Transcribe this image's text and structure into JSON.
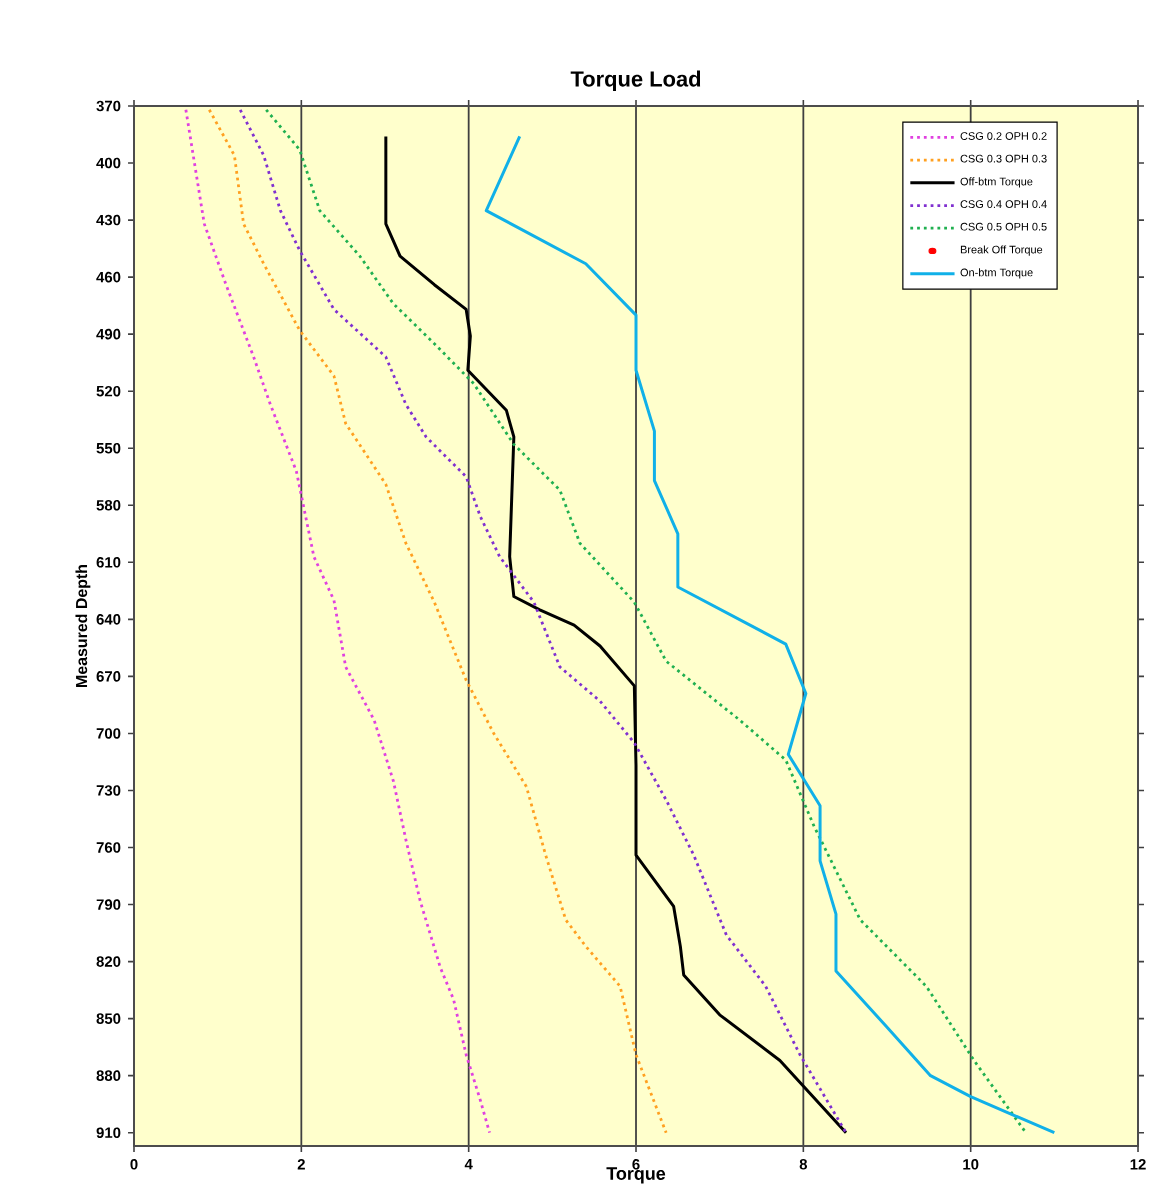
{
  "chart_data": {
    "type": "line",
    "title": "Torque Load",
    "xlabel": "Torque",
    "ylabel": "Measured Depth",
    "xlim": [
      0,
      12
    ],
    "xticks": [
      0,
      2,
      4,
      6,
      8,
      10,
      12
    ],
    "ylim": [
      917,
      370
    ],
    "yticks": [
      370,
      400,
      430,
      460,
      490,
      520,
      550,
      580,
      610,
      640,
      670,
      700,
      730,
      760,
      790,
      820,
      850,
      880,
      910
    ],
    "grid": "x",
    "legend": "top right",
    "series": [
      {
        "name": "CSG 0.2 OPH 0.2",
        "color": "#e040e0",
        "line_style": "dotted",
        "x": [
          0.62,
          0.84,
          1.1,
          1.43,
          1.63,
          1.94,
          2.15,
          2.39,
          2.53,
          2.87,
          3.1,
          3.25,
          3.42,
          3.66,
          3.82,
          3.97,
          4.14,
          4.25
        ],
        "values": [
          372,
          432,
          464,
          502,
          527,
          562,
          607,
          630,
          665,
          693,
          725,
          756,
          788,
          823,
          840,
          869,
          893,
          910
        ]
      },
      {
        "name": "CSG 0.3 OPH 0.3",
        "color": "#ffa020",
        "line_style": "dotted",
        "x": [
          0.9,
          1.2,
          1.31,
          1.55,
          1.98,
          2.39,
          2.53,
          3.01,
          3.25,
          3.59,
          3.97,
          4.3,
          4.69,
          4.92,
          5.16,
          5.4,
          5.81,
          6.0,
          6.36
        ],
        "values": [
          372,
          396,
          432,
          453,
          488,
          512,
          537,
          569,
          600,
          631,
          672,
          700,
          728,
          764,
          798,
          812,
          833,
          869,
          910
        ]
      },
      {
        "name": "Off-btm Torque",
        "color": "#000000",
        "line_style": "solid",
        "x": [
          3.01,
          3.01,
          3.18,
          3.59,
          3.97,
          4.02,
          3.99,
          4.45,
          4.54,
          4.49,
          4.54,
          4.85,
          5.26,
          5.57,
          5.98,
          6.0,
          6.0,
          6.45,
          6.53,
          6.57,
          7.0,
          7.72,
          8.51
        ],
        "values": [
          386,
          432,
          449,
          464,
          477,
          491,
          509,
          530,
          544,
          607,
          628,
          635,
          643,
          654,
          675,
          717,
          764,
          791,
          812,
          827,
          848,
          872,
          910
        ]
      },
      {
        "name": "CSG 0.4 OPH 0.4",
        "color": "#8030d0",
        "line_style": "dotted",
        "x": [
          1.27,
          1.55,
          1.75,
          1.98,
          2.39,
          3.01,
          3.25,
          3.49,
          3.97,
          4.14,
          4.37,
          4.78,
          5.09,
          5.57,
          5.98,
          6.36,
          6.69,
          7.08,
          7.55,
          7.96,
          8.51
        ],
        "values": [
          372,
          396,
          425,
          446,
          477,
          502,
          527,
          544,
          565,
          586,
          607,
          631,
          665,
          683,
          705,
          735,
          764,
          806,
          833,
          869,
          910
        ]
      },
      {
        "name": "CSG 0.5 OPH 0.5",
        "color": "#20b050",
        "line_style": "dotted",
        "x": [
          1.58,
          1.98,
          2.22,
          2.7,
          3.1,
          3.59,
          4.06,
          4.54,
          5.09,
          5.33,
          5.98,
          6.36,
          7.24,
          7.79,
          8.13,
          8.68,
          9.47,
          10.04,
          10.66
        ],
        "values": [
          372,
          393,
          425,
          449,
          474,
          495,
          516,
          548,
          572,
          600,
          631,
          662,
          693,
          714,
          749,
          798,
          833,
          872,
          910
        ]
      },
      {
        "name": "Break Off Torque",
        "type": "scatter",
        "color": "#ff0000",
        "marker": "circle"
      },
      {
        "name": "On-btm Torque",
        "color": "#10b0e8",
        "line_style": "solid",
        "x": [
          4.61,
          4.21,
          5.4,
          6.0,
          6.0,
          6.22,
          6.22,
          6.5,
          6.5,
          7.79,
          8.03,
          7.82,
          8.2,
          8.2,
          8.39,
          8.39,
          8.99,
          9.52,
          10.0,
          11.0
        ],
        "values": [
          386,
          425,
          453,
          480,
          509,
          541,
          567,
          595,
          623,
          653,
          679,
          711,
          738,
          767,
          795,
          825,
          854,
          880,
          891,
          910
        ]
      }
    ]
  }
}
